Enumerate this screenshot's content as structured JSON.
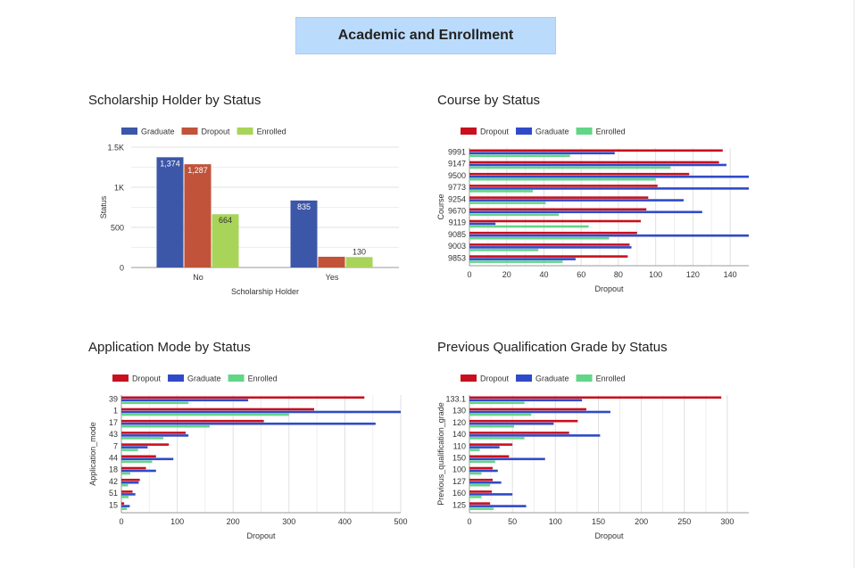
{
  "page": {
    "title": "Academic and Enrollment"
  },
  "colors": {
    "graduate_first": "#3c56a8",
    "dropout_first": "#c0533a",
    "enrolled_first": "#a8d45a",
    "dropout": "#c8101e",
    "graduate": "#2f4ac8",
    "enrolled": "#63d587",
    "grid": "#e0e0e0",
    "axis": "#999999"
  },
  "chart_data": [
    {
      "id": "scholarship",
      "type": "bar",
      "title": "Scholarship Holder by Status",
      "xlabel": "Scholarship Holder",
      "ylabel": "Status",
      "categories": [
        "No",
        "Yes"
      ],
      "series": [
        {
          "name": "Graduate",
          "color": "#3c56a8",
          "values": [
            1374,
            835
          ],
          "labels": [
            "1,374",
            "835"
          ]
        },
        {
          "name": "Dropout",
          "color": "#c0533a",
          "values": [
            1287,
            134
          ],
          "labels": [
            "1,287",
            "134"
          ]
        },
        {
          "name": "Enrolled",
          "color": "#a8d45a",
          "values": [
            664,
            130
          ],
          "labels": [
            "664",
            "130"
          ]
        }
      ],
      "ylim": [
        0,
        1500
      ],
      "yticks": [
        0,
        500,
        1000,
        1500
      ],
      "ytick_labels": [
        "0",
        "500",
        "1K",
        "1.5K"
      ],
      "legend": "top-left",
      "grid": true
    },
    {
      "id": "course",
      "type": "bar",
      "orientation": "horizontal",
      "title": "Course by Status",
      "xlabel": "Dropout",
      "ylabel": "Course",
      "categories": [
        "9991",
        "9147",
        "9500",
        "9773",
        "9254",
        "9670",
        "9119",
        "9085",
        "9003",
        "9853"
      ],
      "series": [
        {
          "name": "Dropout",
          "color": "#c8101e",
          "values": [
            136,
            134,
            118,
            101,
            96,
            95,
            92,
            90,
            86,
            85
          ]
        },
        {
          "name": "Graduate",
          "color": "#2f4ac8",
          "values": [
            78,
            138,
            155,
            155,
            115,
            125,
            14,
            155,
            87,
            57
          ]
        },
        {
          "name": "Enrolled",
          "color": "#63d587",
          "values": [
            54,
            108,
            100,
            34,
            41,
            48,
            64,
            75,
            37,
            50
          ]
        }
      ],
      "xlim": [
        0,
        150
      ],
      "xticks": [
        0,
        20,
        40,
        60,
        80,
        100,
        120,
        140
      ],
      "legend": "top-left",
      "grid": true
    },
    {
      "id": "application",
      "type": "bar",
      "orientation": "horizontal",
      "title": "Application Mode by Status",
      "xlabel": "Dropout",
      "ylabel": "Application_mode",
      "categories": [
        "39",
        "1",
        "17",
        "43",
        "7",
        "44",
        "18",
        "42",
        "51",
        "15"
      ],
      "series": [
        {
          "name": "Dropout",
          "color": "#c8101e",
          "values": [
            435,
            345,
            255,
            115,
            85,
            62,
            44,
            33,
            20,
            5
          ]
        },
        {
          "name": "Graduate",
          "color": "#2f4ac8",
          "values": [
            227,
            500,
            455,
            120,
            47,
            93,
            62,
            31,
            25,
            15
          ]
        },
        {
          "name": "Enrolled",
          "color": "#63d587",
          "values": [
            120,
            300,
            158,
            75,
            30,
            55,
            16,
            12,
            13,
            10
          ]
        }
      ],
      "xlim": [
        0,
        500
      ],
      "xticks": [
        0,
        100,
        200,
        300,
        400,
        500
      ],
      "legend": "top-left",
      "grid": true
    },
    {
      "id": "prevgrade",
      "type": "bar",
      "orientation": "horizontal",
      "title": "Previous Qualification Grade by Status",
      "xlabel": "Dropout",
      "ylabel": "Previous_qualification_grade",
      "categories": [
        "133.1",
        "130",
        "120",
        "140",
        "110",
        "150",
        "100",
        "127",
        "160",
        "125"
      ],
      "series": [
        {
          "name": "Dropout",
          "color": "#c8101e",
          "values": [
            293,
            136,
            126,
            116,
            50,
            46,
            27,
            27,
            26,
            24
          ]
        },
        {
          "name": "Graduate",
          "color": "#2f4ac8",
          "values": [
            131,
            164,
            98,
            152,
            35,
            88,
            33,
            37,
            50,
            66
          ]
        },
        {
          "name": "Enrolled",
          "color": "#63d587",
          "values": [
            64,
            72,
            52,
            64,
            12,
            30,
            14,
            24,
            14,
            28
          ]
        }
      ],
      "xlim": [
        0,
        325
      ],
      "xticks": [
        0,
        50,
        100,
        150,
        200,
        250,
        300
      ],
      "legend": "top-left",
      "grid": true
    }
  ]
}
